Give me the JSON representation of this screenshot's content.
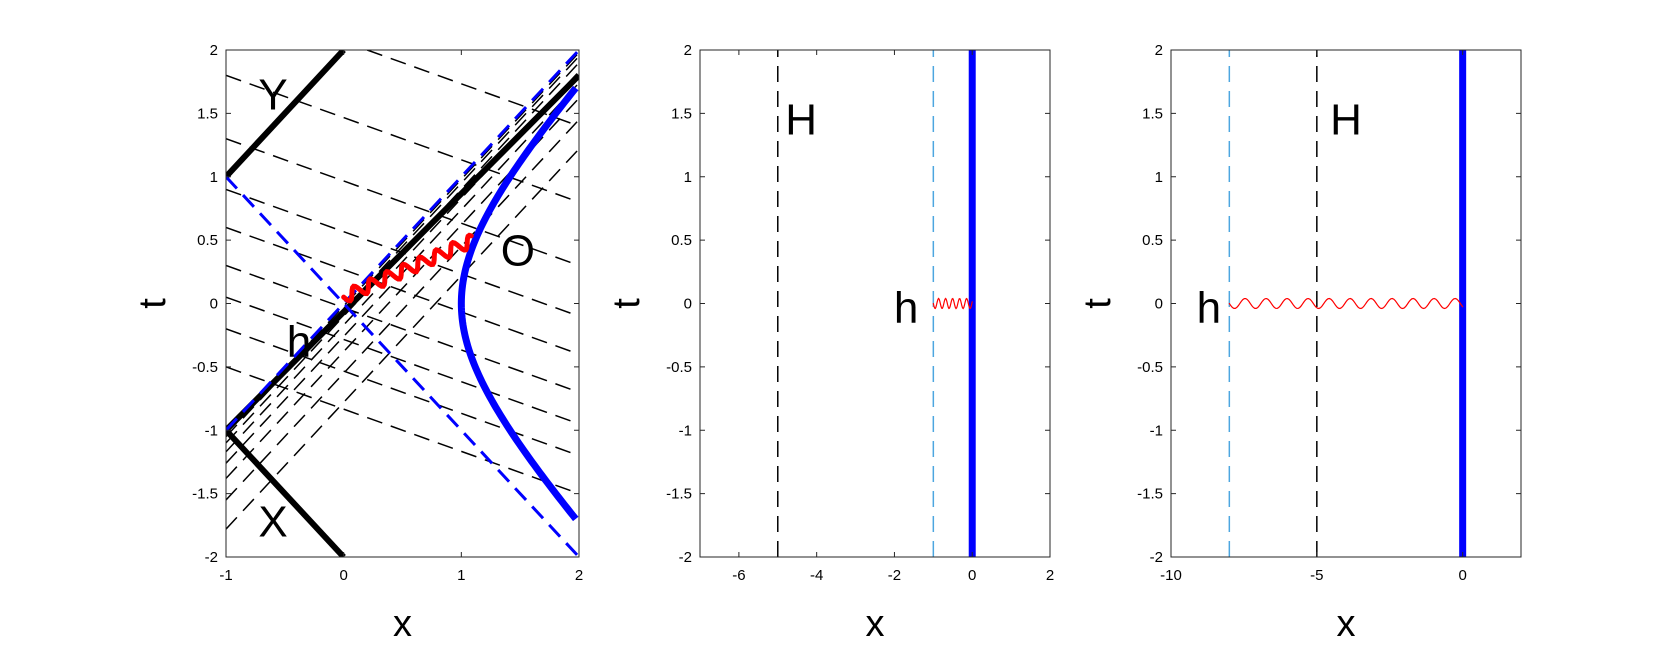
{
  "chart_data": [
    {
      "type": "line",
      "xlabel": "x",
      "ylabel": "t",
      "xlim": [
        -1,
        2
      ],
      "ylim": [
        -2,
        2
      ],
      "xticks": [
        "-1",
        "0",
        "1",
        "2"
      ],
      "yticks": [
        "-2",
        "-1.5",
        "-1",
        "-0.5",
        "0",
        "0.5",
        "1",
        "1.5",
        "2"
      ],
      "grid": false,
      "series": [
        {
          "color": "#0000ff",
          "style": "solid-thick",
          "curve": "x = 1 + (sqrt(1 + t^2) - 1)",
          "t_range": [
            -1.7,
            1.7
          ]
        },
        {
          "color": "#000000",
          "style": "solid-thick",
          "points": [
            [
              -1,
              1
            ],
            [
              0,
              2
            ]
          ]
        },
        {
          "color": "#000000",
          "style": "solid-thick",
          "points": [
            [
              -1,
              -1
            ],
            [
              0,
              -2
            ]
          ]
        },
        {
          "color": "#000000",
          "style": "solid-thick",
          "points": [
            [
              -1,
              -1
            ],
            [
              2,
              1.8
            ]
          ]
        },
        {
          "color": "#0000ff",
          "style": "dashed",
          "points": [
            [
              -1,
              -1
            ],
            [
              2,
              2
            ]
          ]
        },
        {
          "color": "#0000ff",
          "style": "dashed",
          "points": [
            [
              -1,
              1
            ],
            [
              2,
              -2
            ]
          ]
        },
        {
          "color": "#ff0000",
          "style": "wavy-thick",
          "points": [
            [
              0,
              0.05
            ],
            [
              1.1,
              0.5
            ]
          ]
        }
      ],
      "annotations": [
        {
          "text": "Y",
          "x": -0.6,
          "y": 1.65
        },
        {
          "text": "X",
          "x": -0.6,
          "y": -1.72
        },
        {
          "text": "O",
          "x": 1.48,
          "y": 0.42
        },
        {
          "text": "h",
          "x": -0.38,
          "y": -0.3
        }
      ]
    },
    {
      "type": "line",
      "xlabel": "x",
      "ylabel": "t",
      "xlim": [
        -7,
        2
      ],
      "ylim": [
        -2,
        2
      ],
      "xticks": [
        "-6",
        "-4",
        "-2",
        "0",
        "2"
      ],
      "yticks": [
        "-2",
        "-1.5",
        "-1",
        "-0.5",
        "0",
        "0.5",
        "1",
        "1.5",
        "2"
      ],
      "grid": false,
      "series": [
        {
          "color": "#0000ff",
          "style": "solid-thick",
          "points": [
            [
              0,
              -2
            ],
            [
              0,
              2
            ]
          ]
        },
        {
          "color": "#000000",
          "style": "dashed",
          "points": [
            [
              -5,
              -2
            ],
            [
              -5,
              2
            ]
          ]
        },
        {
          "color": "#4da6e0",
          "style": "dashed",
          "points": [
            [
              -1,
              -2
            ],
            [
              -1,
              2
            ]
          ]
        },
        {
          "color": "#ff0000",
          "style": "wavy-thin",
          "points": [
            [
              -1,
              0
            ],
            [
              0,
              0
            ]
          ]
        }
      ],
      "annotations": [
        {
          "text": "H",
          "x": -4.4,
          "y": 1.45
        },
        {
          "text": "h",
          "x": -1.7,
          "y": -0.03
        }
      ]
    },
    {
      "type": "line",
      "xlabel": "x",
      "ylabel": "t",
      "xlim": [
        -10,
        2
      ],
      "ylim": [
        -2,
        2
      ],
      "xticks": [
        "-10",
        "-5",
        "0"
      ],
      "yticks": [
        "-2",
        "-1.5",
        "-1",
        "-0.5",
        "0",
        "0.5",
        "1",
        "1.5",
        "2"
      ],
      "grid": false,
      "series": [
        {
          "color": "#0000ff",
          "style": "solid-thick",
          "points": [
            [
              0,
              -2
            ],
            [
              0,
              2
            ]
          ]
        },
        {
          "color": "#000000",
          "style": "dashed",
          "points": [
            [
              -5,
              -2
            ],
            [
              -5,
              2
            ]
          ]
        },
        {
          "color": "#4da6e0",
          "style": "dashed",
          "points": [
            [
              -8,
              -2
            ],
            [
              -8,
              2
            ]
          ]
        },
        {
          "color": "#ff0000",
          "style": "wavy-thin",
          "points": [
            [
              -8,
              0
            ],
            [
              0,
              0
            ]
          ]
        }
      ],
      "annotations": [
        {
          "text": "H",
          "x": -4.0,
          "y": 1.45
        },
        {
          "text": "h",
          "x": -8.7,
          "y": -0.03
        }
      ]
    }
  ]
}
